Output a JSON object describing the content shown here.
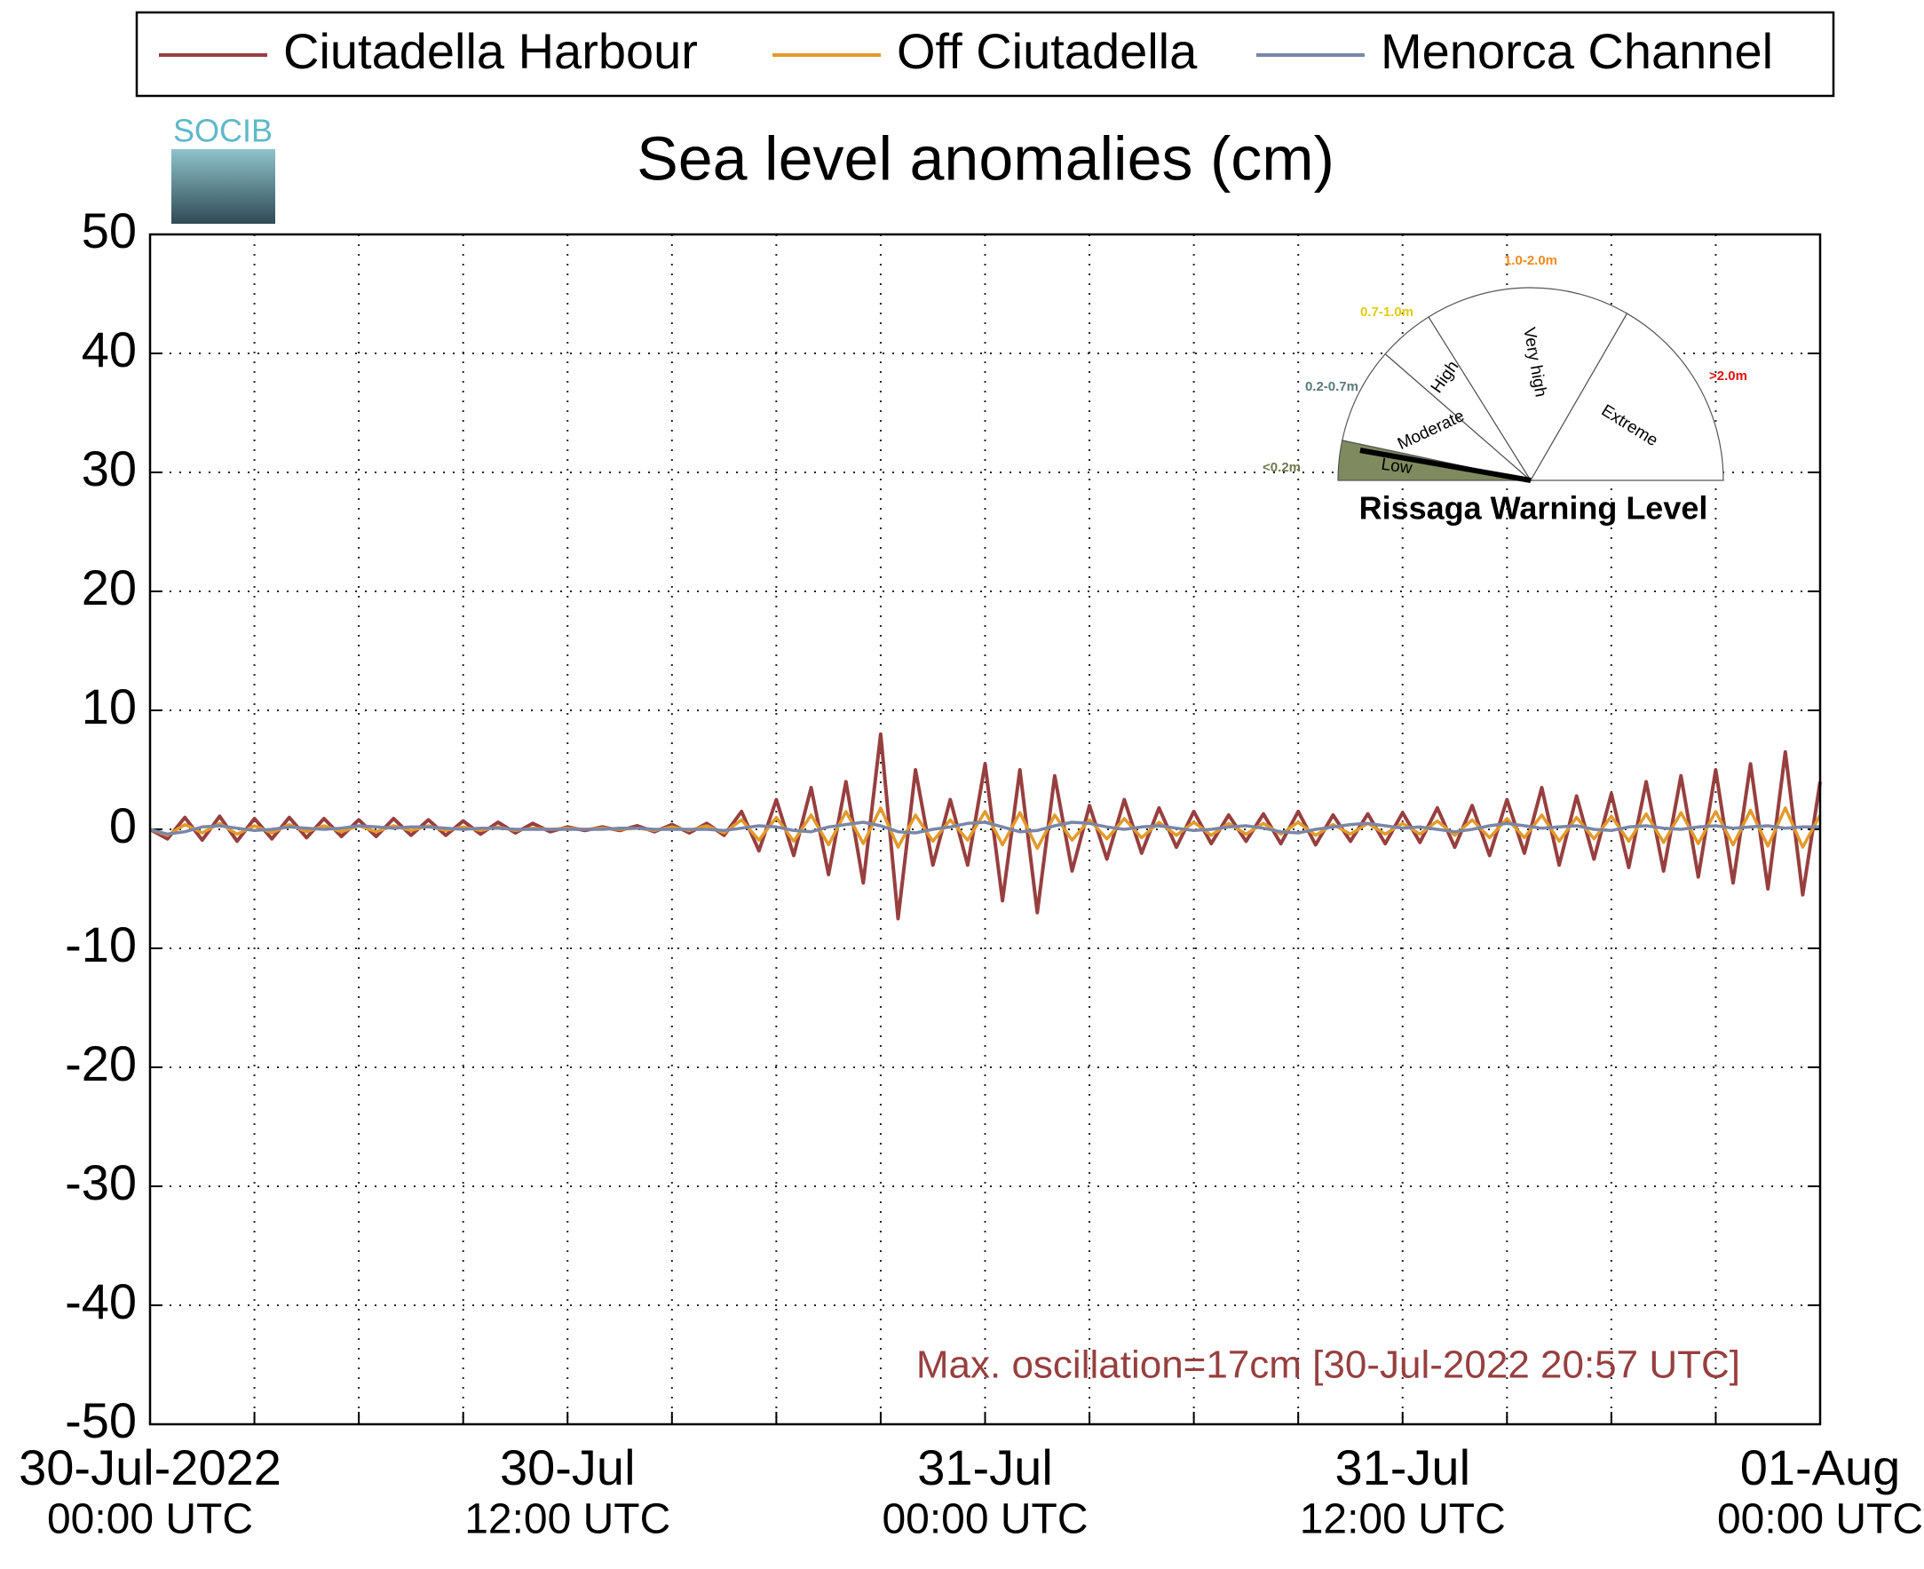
{
  "chart_data": {
    "type": "line",
    "title": "Sea level anomalies (cm)",
    "logo": "SOCIB",
    "annotation": "Max. oscillation=17cm [30-Jul-2022 20:57 UTC]",
    "ylim": [
      -50,
      50
    ],
    "yticks": [
      -50,
      -40,
      -30,
      -20,
      -10,
      0,
      10,
      20,
      30,
      40,
      50
    ],
    "xlim": [
      0,
      48
    ],
    "xticks": [
      {
        "value": 0,
        "label": "30-Jul-2022"
      },
      {
        "value": 12,
        "label": "30-Jul"
      },
      {
        "value": 24,
        "label": "31-Jul"
      },
      {
        "value": 36,
        "label": "31-Jul"
      },
      {
        "value": 48,
        "label": "01-Aug"
      }
    ],
    "xtick_times": [
      "00:00 UTC",
      "12:00 UTC",
      "00:00 UTC",
      "12:00 UTC",
      "00:00 UTC"
    ],
    "xminor": [
      3,
      6,
      9,
      15,
      18,
      21,
      27,
      30,
      33,
      39,
      42,
      45
    ],
    "grid": true,
    "legend": "top",
    "x": [
      0,
      0.5,
      1,
      1.5,
      2,
      2.5,
      3,
      3.5,
      4,
      4.5,
      5,
      5.5,
      6,
      6.5,
      7,
      7.5,
      8,
      8.5,
      9,
      9.5,
      10,
      10.5,
      11,
      11.5,
      12,
      12.5,
      13,
      13.5,
      14,
      14.5,
      15,
      15.5,
      16,
      16.5,
      17,
      17.5,
      18,
      18.5,
      19,
      19.5,
      20,
      20.5,
      21,
      21.5,
      22,
      22.5,
      23,
      23.5,
      24,
      24.5,
      25,
      25.5,
      26,
      26.5,
      27,
      27.5,
      28,
      28.5,
      29,
      29.5,
      30,
      30.5,
      31,
      31.5,
      32,
      32.5,
      33,
      33.5,
      34,
      34.5,
      35,
      35.5,
      36,
      36.5,
      37,
      37.5,
      38,
      38.5,
      39,
      39.5,
      40,
      40.5,
      41,
      41.5,
      42,
      42.5,
      43,
      43.5,
      44,
      44.5,
      45,
      45.5,
      46,
      46.5,
      47,
      47.5,
      48
    ],
    "series": [
      {
        "name": "Ciutadella Harbour",
        "color": "#973f3f",
        "values": [
          0,
          -0.8,
          1,
          -0.9,
          1.1,
          -1,
          0.9,
          -0.8,
          1,
          -0.7,
          0.9,
          -0.6,
          0.8,
          -0.6,
          0.9,
          -0.5,
          0.8,
          -0.5,
          0.7,
          -0.4,
          0.6,
          -0.3,
          0.5,
          -0.2,
          0.2,
          -0.1,
          0.2,
          -0.1,
          0.3,
          -0.2,
          0.4,
          -0.3,
          0.5,
          -0.5,
          1.5,
          -1.8,
          2.5,
          -2.2,
          3.5,
          -3.8,
          4,
          -4.5,
          8,
          -7.5,
          5,
          -3,
          2.5,
          -3,
          5.5,
          -6,
          5,
          -7,
          4.5,
          -3.5,
          2,
          -2.5,
          2.5,
          -2,
          1.8,
          -1.5,
          1.5,
          -1.2,
          1.2,
          -1,
          1.3,
          -1.2,
          1.5,
          -1.3,
          1.2,
          -1,
          1.3,
          -1.2,
          1.4,
          -1.1,
          1.8,
          -1.5,
          2,
          -2.2,
          2.5,
          -2,
          3.5,
          -3,
          2.8,
          -2.5,
          3,
          -3.2,
          4,
          -3.5,
          4.5,
          -4,
          5,
          -4.5,
          5.5,
          -5,
          6.5,
          -5.5,
          4
        ]
      },
      {
        "name": "Off Ciutadella",
        "color": "#e39a2b",
        "values": [
          0,
          -0.5,
          0.4,
          -0.3,
          0.5,
          -0.4,
          0.3,
          -0.3,
          0.4,
          -0.2,
          0.3,
          -0.2,
          0.3,
          -0.2,
          0.3,
          -0.1,
          0.3,
          -0.1,
          0.2,
          -0.1,
          0.2,
          -0.1,
          0.1,
          0,
          0.1,
          0,
          0.1,
          0,
          0.1,
          -0.1,
          0.2,
          -0.1,
          0.3,
          -0.3,
          0.8,
          -0.9,
          1,
          -1,
          1.2,
          -1.3,
          1.5,
          -1.2,
          1.8,
          -1.5,
          1.2,
          -1,
          0.8,
          -0.9,
          1.5,
          -1.3,
          1.4,
          -1.6,
          1.2,
          -0.9,
          0.8,
          -0.8,
          0.9,
          -0.7,
          0.6,
          -0.5,
          0.6,
          -0.5,
          0.5,
          -0.4,
          0.5,
          -0.4,
          0.6,
          -0.5,
          0.4,
          -0.4,
          0.5,
          -0.4,
          0.5,
          -0.4,
          0.7,
          -0.5,
          0.8,
          -0.7,
          0.9,
          -0.7,
          1.2,
          -1,
          1,
          -0.8,
          1.1,
          -1,
          1.3,
          -1.1,
          1.4,
          -1.2,
          1.5,
          -1.3,
          1.6,
          -1.4,
          1.8,
          -1.5,
          1.2
        ]
      },
      {
        "name": "Menorca Channel",
        "color": "#7a86a8",
        "values": [
          0,
          -0.4,
          -0.2,
          0.2,
          0.3,
          0.1,
          -0.1,
          0,
          0.2,
          0.1,
          0,
          0.1,
          0.3,
          0.2,
          0.1,
          0.2,
          0.2,
          0.1,
          0,
          0.1,
          0.1,
          0,
          0,
          0,
          0,
          0,
          0,
          0.1,
          0.1,
          0,
          0,
          0,
          0,
          -0.1,
          0.1,
          0.3,
          0.2,
          -0.1,
          -0.2,
          0.2,
          0.4,
          0.6,
          0.3,
          -0.2,
          -0.3,
          0,
          0.2,
          0.5,
          0.6,
          0.2,
          -0.2,
          -0.1,
          0.3,
          0.6,
          0.5,
          0.2,
          0,
          0.2,
          0.3,
          0.1,
          -0.1,
          0,
          0.2,
          0.3,
          0.1,
          -0.2,
          -0.3,
          0,
          0.2,
          0.4,
          0.5,
          0.3,
          0.1,
          0.2,
          0,
          -0.2,
          0,
          0.3,
          0.5,
          0.3,
          0.1,
          0.2,
          0.3,
          0,
          -0.1,
          0.2,
          0.3,
          0.1,
          0,
          0.2,
          0.3,
          0.1,
          0.2,
          0.3,
          0.1,
          0.2,
          0.2
        ]
      }
    ],
    "inset": {
      "title": "Rissaga Warning Level",
      "levels": [
        "Low",
        "Moderate",
        "High",
        "Very high",
        "Extreme"
      ],
      "ranges": [
        "<0.2m",
        "0.2-0.7m",
        "0.7-1.0m",
        "1.0-2.0m",
        ">2.0m"
      ],
      "range_colors": [
        "#6f7a4e",
        "#5a7a7a",
        "#e0cc10",
        "#f08a1a",
        "#e01010"
      ],
      "low_color": "#7f8a5f"
    }
  }
}
